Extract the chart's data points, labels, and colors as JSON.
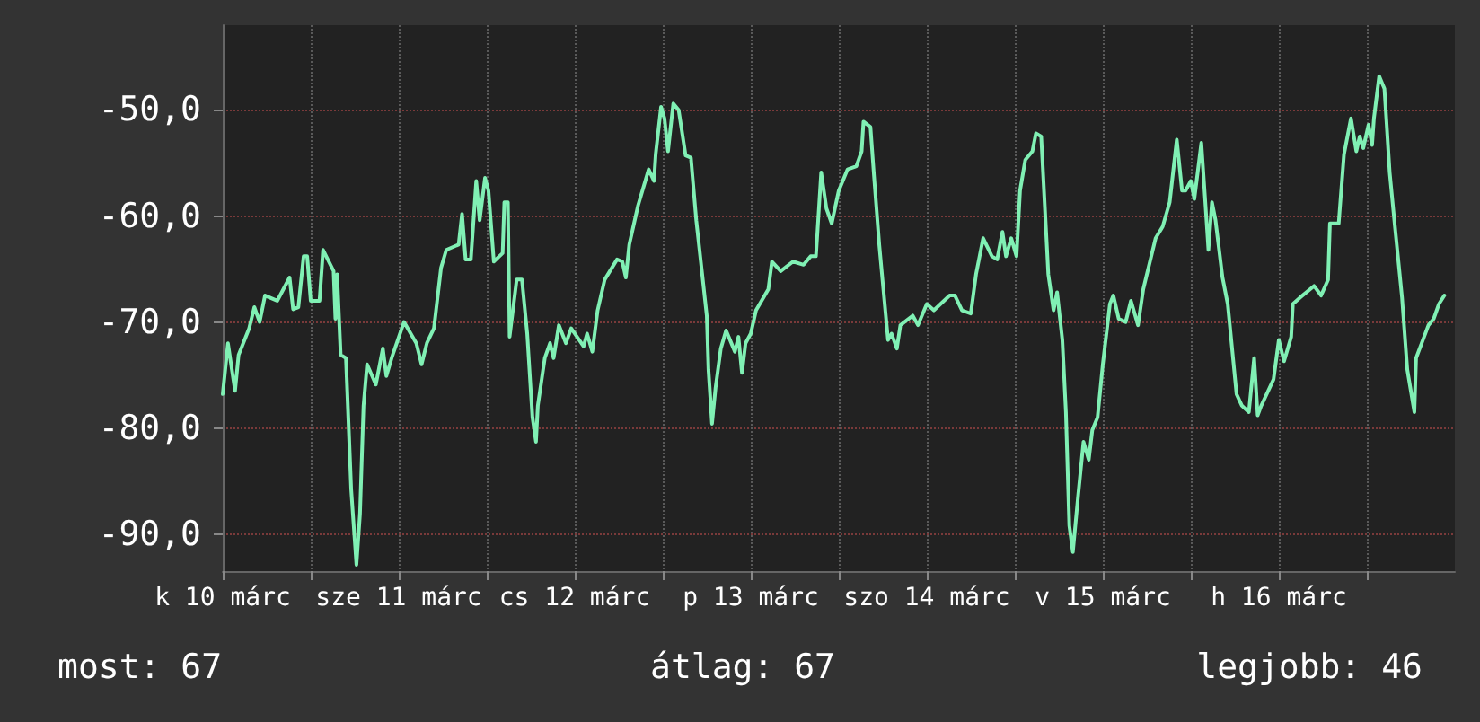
{
  "chart_data": {
    "type": "line",
    "x": [
      "--03-10T12:00",
      "--03-10T12:43",
      "--03-10T13:41",
      "--03-10T14:10",
      "--03-10T15:36",
      "--03-10T16:19",
      "--03-10T17:02",
      "--03-10T17:46",
      "--03-10T19:26",
      "--03-10T21:07",
      "--03-10T21:36",
      "--03-10T22:19",
      "--03-10T23:02",
      "--03-10T23:31",
      "--03-11T00:00",
      "--03-11T01:12",
      "--03-11T01:41",
      "--03-11T03:07",
      "--03-11T03:22",
      "--03-11T03:36",
      "--03-11T04:05",
      "--03-11T04:48",
      "--03-11T05:31",
      "--03-11T06:14",
      "--03-11T06:43",
      "--03-11T07:12",
      "--03-11T07:41",
      "--03-11T08:53",
      "--03-11T09:50",
      "--03-11T10:19",
      "--03-11T11:02",
      "--03-11T12:43",
      "--03-11T14:24",
      "--03-11T15:07",
      "--03-11T15:50",
      "--03-11T16:48",
      "--03-11T17:46",
      "--03-11T18:29",
      "--03-11T20:10",
      "--03-11T20:38",
      "--03-11T21:07",
      "--03-11T21:50",
      "--03-11T22:34",
      "--03-11T23:02",
      "--03-11T23:46",
      "--03-12T00:14",
      "--03-12T00:58",
      "--03-12T02:10",
      "--03-12T02:24",
      "--03-12T02:53",
      "--03-12T03:07",
      "--03-12T04:05",
      "--03-12T04:48",
      "--03-12T05:31",
      "--03-12T06:14",
      "--03-12T06:43",
      "--03-12T06:58",
      "--03-12T07:55",
      "--03-12T08:38",
      "--03-12T09:07",
      "--03-12T09:50",
      "--03-12T10:48",
      "--03-12T11:31",
      "--03-12T13:12",
      "--03-12T13:41",
      "--03-12T14:24",
      "--03-12T15:07",
      "--03-12T16:05",
      "--03-12T17:46",
      "--03-12T18:29",
      "--03-12T18:58",
      "--03-12T19:26",
      "--03-12T20:38",
      "--03-12T22:05",
      "--03-12T22:48",
      "--03-12T23:02",
      "--03-12T23:46",
      "--03-13T00:14",
      "--03-13T00:43",
      "--03-13T01:26",
      "--03-13T02:10",
      "--03-13T03:07",
      "--03-13T03:50",
      "--03-13T04:34",
      "--03-13T05:17",
      "--03-13T06:00",
      "--03-13T06:14",
      "--03-13T06:43",
      "--03-13T07:12",
      "--03-13T07:55",
      "--03-13T08:38",
      "--03-13T09:50",
      "--03-13T10:19",
      "--03-13T10:48",
      "--03-13T11:17",
      "--03-13T12:00",
      "--03-13T12:43",
      "--03-13T14:24",
      "--03-13T14:53",
      "--03-13T16:05",
      "--03-13T17:46",
      "--03-13T19:12",
      "--03-13T20:10",
      "--03-13T20:53",
      "--03-13T21:36",
      "--03-13T22:19",
      "--03-13T23:02",
      "--03-14T00:00",
      "--03-14T01:12",
      "--03-14T02:24",
      "--03-14T03:07",
      "--03-14T03:22",
      "--03-14T04:19",
      "--03-14T04:48",
      "--03-14T05:31",
      "--03-14T06:43",
      "--03-14T07:12",
      "--03-14T07:55",
      "--03-14T08:24",
      "--03-14T10:05",
      "--03-14T10:48",
      "--03-14T12:00",
      "--03-14T12:58",
      "--03-14T15:07",
      "--03-14T15:50",
      "--03-14T16:48",
      "--03-14T18:00",
      "--03-14T18:43",
      "--03-14T19:41",
      "--03-14T20:53",
      "--03-14T21:36",
      "--03-14T22:19",
      "--03-14T22:48",
      "--03-14T23:31",
      "--03-15T00:14",
      "--03-15T00:43",
      "--03-15T01:26",
      "--03-15T02:24",
      "--03-15T02:53",
      "--03-15T03:36",
      "--03-15T04:34",
      "--03-15T05:17",
      "--03-15T05:46",
      "--03-15T06:29",
      "--03-15T06:58",
      "--03-15T07:26",
      "--03-15T07:55",
      "--03-15T08:38",
      "--03-15T09:22",
      "--03-15T10:05",
      "--03-15T10:34",
      "--03-15T11:17",
      "--03-15T12:00",
      "--03-15T12:58",
      "--03-15T13:26",
      "--03-15T14:10",
      "--03-15T15:07",
      "--03-15T15:50",
      "--03-15T16:48",
      "--03-15T17:31",
      "--03-15T19:12",
      "--03-15T20:10",
      "--03-15T21:07",
      "--03-15T22:05",
      "--03-15T22:48",
      "--03-15T23:17",
      "--03-16T00:00",
      "--03-16T00:29",
      "--03-16T01:26",
      "--03-16T01:55",
      "--03-16T02:24",
      "--03-16T02:53",
      "--03-16T03:22",
      "--03-16T04:19",
      "--03-16T05:02",
      "--03-16T06:14",
      "--03-16T06:58",
      "--03-16T07:55",
      "--03-16T08:38",
      "--03-16T09:07",
      "--03-16T09:36",
      "--03-16T11:17",
      "--03-16T12:00",
      "--03-16T12:43",
      "--03-16T13:41",
      "--03-16T13:55",
      "--03-16T14:53",
      "--03-16T16:48",
      "--03-16T17:46",
      "--03-16T18:43",
      "--03-16T18:58",
      "--03-16T20:10",
      "--03-16T20:53",
      "--03-16T21:50",
      "--03-16T22:34",
      "--03-16T23:02",
      "--03-16T23:31",
      "--03-17T00:14",
      "--03-17T00:43",
      "--03-17T00:58",
      "--03-17T01:41",
      "--03-17T02:24",
      "--03-17T03:07",
      "--03-17T03:50",
      "--03-17T04:48",
      "--03-17T05:31",
      "--03-17T06:29",
      "--03-17T06:43",
      "--03-17T08:24",
      "--03-17T09:07",
      "--03-17T09:50",
      "--03-17T10:34"
    ],
    "series": [
      {
        "color": "#80f0b4",
        "values": [
          -76.8,
          -72.0,
          -76.5,
          -73.1,
          -70.6,
          -68.6,
          -70.0,
          -67.5,
          -68.0,
          -65.8,
          -68.8,
          -68.6,
          -63.8,
          -63.8,
          -68.0,
          -68.0,
          -63.2,
          -65.2,
          -69.7,
          -65.5,
          -73.1,
          -73.4,
          -85.8,
          -92.9,
          -88.1,
          -77.9,
          -74.0,
          -75.9,
          -72.5,
          -75.1,
          -73.4,
          -70.0,
          -72.0,
          -74.0,
          -72.0,
          -70.6,
          -64.9,
          -63.2,
          -62.7,
          -59.8,
          -64.1,
          -64.1,
          -56.7,
          -60.4,
          -56.4,
          -57.6,
          -64.3,
          -63.5,
          -58.7,
          -58.7,
          -71.4,
          -66.0,
          -66.0,
          -71.1,
          -79.0,
          -81.3,
          -77.9,
          -73.4,
          -72.0,
          -73.4,
          -70.3,
          -72.0,
          -70.6,
          -72.3,
          -71.1,
          -72.8,
          -68.9,
          -66.0,
          -64.1,
          -64.3,
          -65.8,
          -62.7,
          -59.0,
          -55.6,
          -56.7,
          -54.2,
          -49.7,
          -50.8,
          -53.9,
          -49.4,
          -50.0,
          -54.3,
          -54.5,
          -60.4,
          -64.9,
          -69.4,
          -74.5,
          -79.6,
          -76.2,
          -72.5,
          -70.8,
          -72.8,
          -71.4,
          -74.8,
          -72.0,
          -71.1,
          -68.9,
          -66.9,
          -64.3,
          -65.2,
          -64.3,
          -64.6,
          -63.8,
          -63.8,
          -55.9,
          -59.3,
          -60.7,
          -57.6,
          -55.6,
          -55.3,
          -53.9,
          -51.1,
          -51.6,
          -56.2,
          -62.7,
          -71.7,
          -71.1,
          -72.5,
          -70.3,
          -69.4,
          -70.3,
          -68.3,
          -68.9,
          -67.5,
          -67.5,
          -68.9,
          -69.2,
          -65.5,
          -62.1,
          -63.8,
          -64.1,
          -61.5,
          -63.8,
          -62.1,
          -63.8,
          -57.6,
          -54.7,
          -53.9,
          -52.2,
          -52.5,
          -65.5,
          -68.9,
          -67.2,
          -71.7,
          -78.5,
          -89.2,
          -91.7,
          -86.4,
          -81.3,
          -83.0,
          -80.2,
          -79.0,
          -74.0,
          -68.3,
          -67.5,
          -69.7,
          -70.0,
          -68.0,
          -70.3,
          -66.9,
          -62.1,
          -61.0,
          -58.7,
          -52.8,
          -57.6,
          -57.6,
          -56.7,
          -58.4,
          -53.1,
          -58.1,
          -63.2,
          -58.7,
          -60.4,
          -65.8,
          -68.3,
          -76.8,
          -77.9,
          -78.5,
          -73.4,
          -78.8,
          -77.9,
          -75.4,
          -71.7,
          -73.7,
          -71.4,
          -68.3,
          -67.7,
          -66.6,
          -67.5,
          -66.0,
          -60.7,
          -60.7,
          -54.2,
          -50.8,
          -53.9,
          -52.5,
          -53.6,
          -51.4,
          -53.3,
          -50.8,
          -46.8,
          -48.0,
          -55.9,
          -61.0,
          -67.7,
          -74.5,
          -78.5,
          -73.4,
          -70.3,
          -69.7,
          -68.3,
          -67.5
        ]
      }
    ],
    "xlim": [
      "--03-10T12:00",
      "--03-17T12:00"
    ],
    "xticks": [
      {
        "value": "--03-10T12:00",
        "label": "k 10 márc"
      },
      {
        "value": "--03-11T00:00",
        "label": null
      },
      {
        "value": "--03-11T12:00",
        "label": "sze 11 márc"
      },
      {
        "value": "--03-12T00:00",
        "label": null
      },
      {
        "value": "--03-12T12:00",
        "label": "cs 12 márc"
      },
      {
        "value": "--03-13T00:00",
        "label": null
      },
      {
        "value": "--03-13T12:00",
        "label": "p 13 márc"
      },
      {
        "value": "--03-14T00:00",
        "label": null
      },
      {
        "value": "--03-14T12:00",
        "label": "szo 14 márc"
      },
      {
        "value": "--03-15T00:00",
        "label": null
      },
      {
        "value": "--03-15T12:00",
        "label": "v 15 márc"
      },
      {
        "value": "--03-16T00:00",
        "label": null
      },
      {
        "value": "--03-16T12:00",
        "label": "h 16 márc"
      },
      {
        "value": "--03-17T00:00",
        "label": null
      }
    ],
    "ylim": [
      -93.5,
      -42
    ],
    "yticks": [
      {
        "value": -90,
        "label": "-90,0"
      },
      {
        "value": -80,
        "label": "-80,0"
      },
      {
        "value": -70,
        "label": "-70,0"
      },
      {
        "value": -60,
        "label": "-60,0"
      },
      {
        "value": -50,
        "label": "-50,0"
      }
    ],
    "grid": true,
    "marker": "none",
    "line_style": "solid",
    "annotations": [
      "most: 67",
      "átlag: 67",
      "legjobb: 46"
    ]
  }
}
